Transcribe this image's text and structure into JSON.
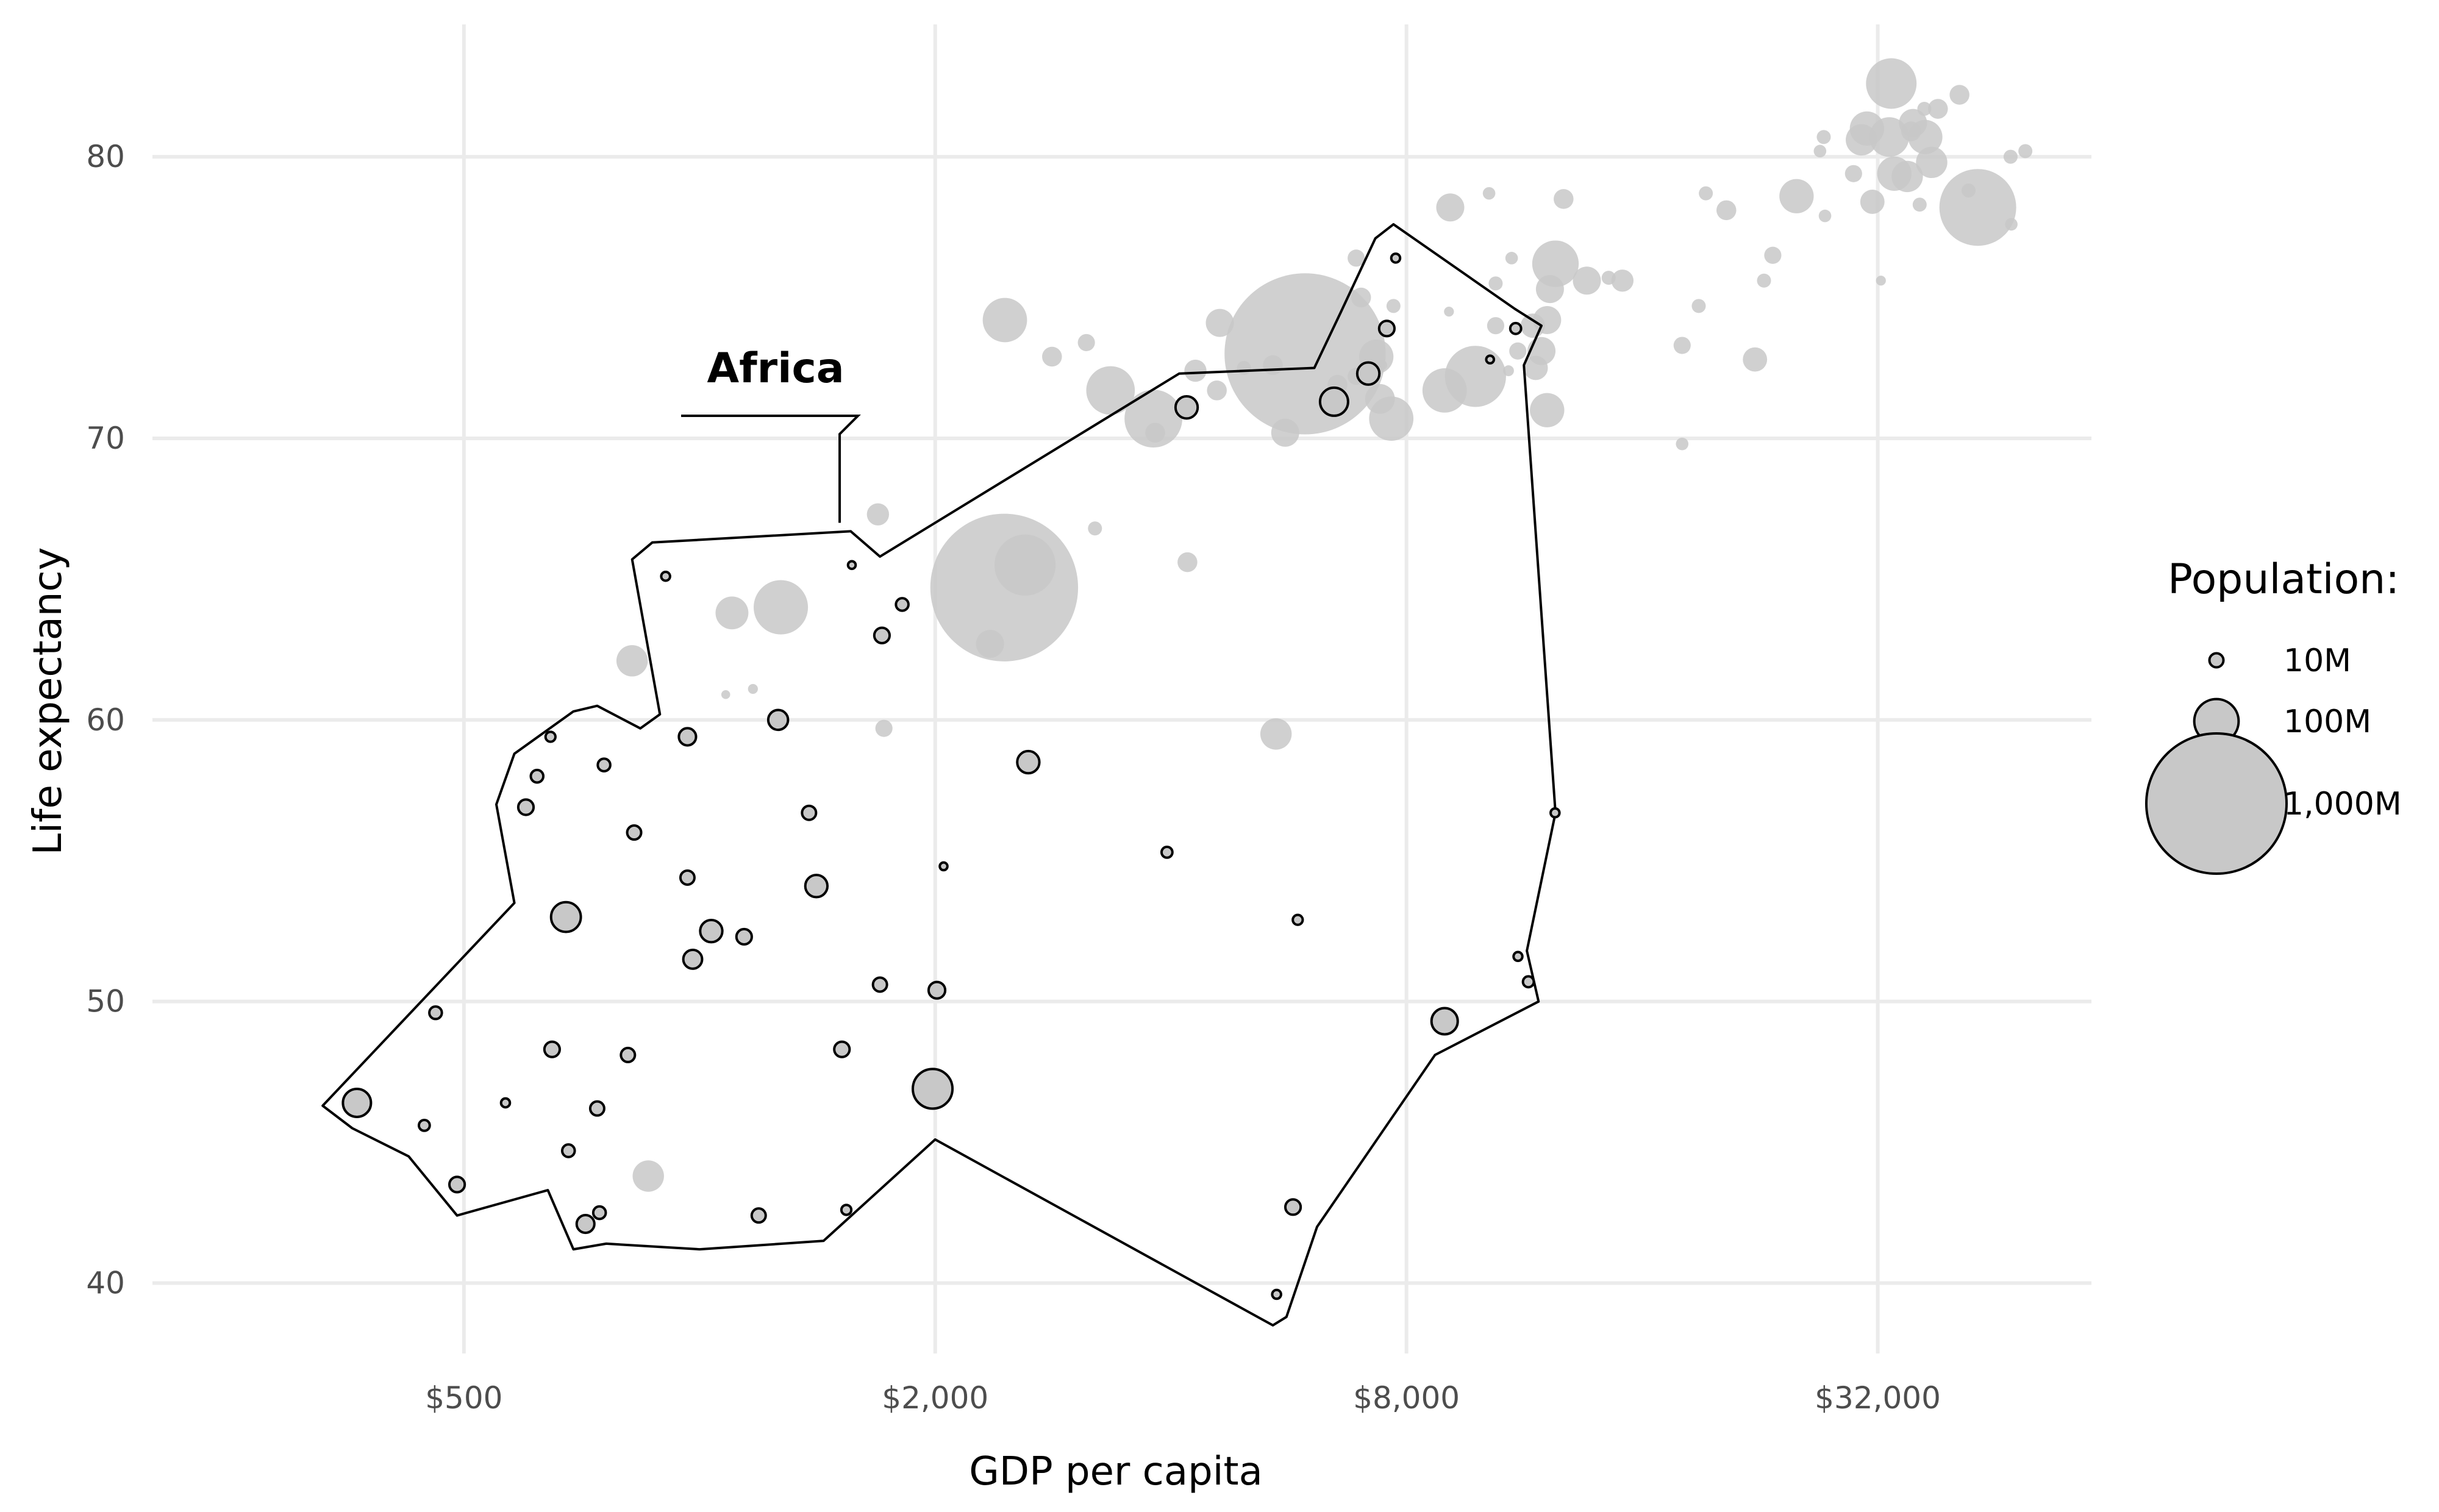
{
  "chart_data": {
    "type": "scatter",
    "title": "",
    "xlabel": "GDP per capita",
    "ylabel": "Life expectancy",
    "x_scale": "log2",
    "xlim": [
      200,
      60000
    ],
    "ylim": [
      37.5,
      84.7
    ],
    "x_ticks": [
      {
        "value": 500,
        "label": "$500"
      },
      {
        "value": 2000,
        "label": "$2,000"
      },
      {
        "value": 8000,
        "label": "$8,000"
      },
      {
        "value": 32000,
        "label": "$32,000"
      }
    ],
    "y_ticks": [
      {
        "value": 40,
        "label": "40"
      },
      {
        "value": 50,
        "label": "50"
      },
      {
        "value": 60,
        "label": "60"
      },
      {
        "value": 70,
        "label": "70"
      },
      {
        "value": 80,
        "label": "80"
      }
    ],
    "grid": true,
    "legend": {
      "title": "Population:",
      "placement": "right",
      "entries": [
        {
          "label": "10M",
          "pop": 10
        },
        {
          "label": "100M",
          "pop": 100
        },
        {
          "label": "1,000M",
          "pop": 1000
        }
      ]
    },
    "annotation": {
      "text": "Africa",
      "target": "Africa hull"
    },
    "colors": {
      "point_fill": "#c8c8c8",
      "point_stroke": "#000000",
      "grid": "#ebebeb",
      "hull": "#000000"
    },
    "hull": [
      [
        330,
        46.3
      ],
      [
        360,
        45.5
      ],
      [
        425,
        44.5
      ],
      [
        490,
        42.4
      ],
      [
        640,
        43.3
      ],
      [
        690,
        41.2
      ],
      [
        760,
        41.4
      ],
      [
        1000,
        41.2
      ],
      [
        1440,
        41.5
      ],
      [
        2000,
        45.1
      ],
      [
        5400,
        38.5
      ],
      [
        5620,
        38.8
      ],
      [
        6150,
        42.0
      ],
      [
        8700,
        48.1
      ],
      [
        11800,
        50.0
      ],
      [
        11400,
        51.8
      ],
      [
        12400,
        56.7
      ],
      [
        11300,
        72.6
      ],
      [
        11900,
        74.0
      ],
      [
        11000,
        74.6
      ],
      [
        7700,
        77.6
      ],
      [
        7300,
        77.1
      ],
      [
        6600,
        74.5
      ],
      [
        6100,
        72.5
      ],
      [
        4100,
        72.3
      ],
      [
        1700,
        65.8
      ],
      [
        1560,
        66.7
      ],
      [
        870,
        66.3
      ],
      [
        820,
        65.7
      ],
      [
        890,
        60.2
      ],
      [
        840,
        59.7
      ],
      [
        740,
        60.5
      ],
      [
        690,
        60.3
      ],
      [
        580,
        58.8
      ],
      [
        550,
        57.0
      ],
      [
        580,
        53.5
      ],
      [
        330,
        46.3
      ]
    ],
    "points_africa": [
      {
        "gdp": 365,
        "le": 46.4,
        "pop": 40
      },
      {
        "gdp": 460,
        "le": 49.6,
        "pop": 8
      },
      {
        "gdp": 445,
        "le": 45.6,
        "pop": 6
      },
      {
        "gdp": 490,
        "le": 43.5,
        "pop": 12
      },
      {
        "gdp": 565,
        "le": 46.4,
        "pop": 4
      },
      {
        "gdp": 600,
        "le": 56.9,
        "pop": 12
      },
      {
        "gdp": 620,
        "le": 58.0,
        "pop": 8
      },
      {
        "gdp": 645,
        "le": 59.4,
        "pop": 5
      },
      {
        "gdp": 648,
        "le": 48.3,
        "pop": 12
      },
      {
        "gdp": 675,
        "le": 53.0,
        "pop": 45
      },
      {
        "gdp": 680,
        "le": 44.7,
        "pop": 8
      },
      {
        "gdp": 715,
        "le": 42.1,
        "pop": 16
      },
      {
        "gdp": 745,
        "le": 42.5,
        "pop": 8
      },
      {
        "gdp": 740,
        "le": 46.2,
        "pop": 10
      },
      {
        "gdp": 755,
        "le": 58.4,
        "pop": 8
      },
      {
        "gdp": 810,
        "le": 48.1,
        "pop": 10
      },
      {
        "gdp": 825,
        "le": 56.0,
        "pop": 10
      },
      {
        "gdp": 905,
        "le": 65.1,
        "pop": 4
      },
      {
        "gdp": 965,
        "le": 59.4,
        "pop": 15
      },
      {
        "gdp": 965,
        "le": 54.4,
        "pop": 10
      },
      {
        "gdp": 980,
        "le": 51.5,
        "pop": 18
      },
      {
        "gdp": 1035,
        "le": 52.5,
        "pop": 25
      },
      {
        "gdp": 1140,
        "le": 52.3,
        "pop": 12
      },
      {
        "gdp": 1190,
        "le": 42.4,
        "pop": 10
      },
      {
        "gdp": 1260,
        "le": 60.0,
        "pop": 20
      },
      {
        "gdp": 1380,
        "le": 56.7,
        "pop": 10
      },
      {
        "gdp": 1410,
        "le": 54.1,
        "pop": 25
      },
      {
        "gdp": 1520,
        "le": 48.3,
        "pop": 12
      },
      {
        "gdp": 1540,
        "le": 42.6,
        "pop": 5
      },
      {
        "gdp": 1565,
        "le": 65.5,
        "pop": 3
      },
      {
        "gdp": 1700,
        "le": 50.6,
        "pop": 10
      },
      {
        "gdp": 1710,
        "le": 63.0,
        "pop": 12
      },
      {
        "gdp": 1815,
        "le": 64.1,
        "pop": 8
      },
      {
        "gdp": 1985,
        "le": 46.9,
        "pop": 80
      },
      {
        "gdp": 2010,
        "le": 50.4,
        "pop": 14
      },
      {
        "gdp": 2050,
        "le": 54.8,
        "pop": 3
      },
      {
        "gdp": 2630,
        "le": 58.5,
        "pop": 25
      },
      {
        "gdp": 3955,
        "le": 55.3,
        "pop": 6
      },
      {
        "gdp": 4190,
        "le": 71.1,
        "pop": 25
      },
      {
        "gdp": 5460,
        "le": 39.6,
        "pop": 4
      },
      {
        "gdp": 5730,
        "le": 42.7,
        "pop": 12
      },
      {
        "gdp": 5810,
        "le": 52.9,
        "pop": 5
      },
      {
        "gdp": 6465,
        "le": 71.3,
        "pop": 40
      },
      {
        "gdp": 7150,
        "le": 72.3,
        "pop": 25
      },
      {
        "gdp": 7550,
        "le": 73.9,
        "pop": 12
      },
      {
        "gdp": 7750,
        "le": 76.4,
        "pop": 4
      },
      {
        "gdp": 8950,
        "le": 49.3,
        "pop": 35
      },
      {
        "gdp": 10230,
        "le": 72.8,
        "pop": 3
      },
      {
        "gdp": 11030,
        "le": 73.9,
        "pop": 6
      },
      {
        "gdp": 11105,
        "le": 51.6,
        "pop": 4
      },
      {
        "gdp": 11450,
        "le": 50.7,
        "pop": 6
      },
      {
        "gdp": 12385,
        "le": 56.7,
        "pop": 4
      }
    ],
    "points_other": [
      {
        "gdp": 1100,
        "le": 63.8,
        "pop": 55
      },
      {
        "gdp": 1270,
        "le": 64.0,
        "pop": 150
      },
      {
        "gdp": 1170,
        "le": 61.1,
        "pop": 5
      },
      {
        "gdp": 1080,
        "le": 60.9,
        "pop": 4
      },
      {
        "gdp": 1690,
        "le": 67.3,
        "pop": 25
      },
      {
        "gdp": 1720,
        "le": 59.7,
        "pop": 15
      },
      {
        "gdp": 820,
        "le": 62.1,
        "pop": 50
      },
      {
        "gdp": 860,
        "le": 43.8,
        "pop": 50
      },
      {
        "gdp": 2450,
        "le": 64.7,
        "pop": 1110
      },
      {
        "gdp": 2455,
        "le": 74.2,
        "pop": 100
      },
      {
        "gdp": 2605,
        "le": 65.5,
        "pop": 190
      },
      {
        "gdp": 2350,
        "le": 62.7,
        "pop": 40
      },
      {
        "gdp": 2820,
        "le": 72.9,
        "pop": 20
      },
      {
        "gdp": 3120,
        "le": 73.4,
        "pop": 15
      },
      {
        "gdp": 3200,
        "le": 66.8,
        "pop": 10
      },
      {
        "gdp": 3350,
        "le": 71.7,
        "pop": 120
      },
      {
        "gdp": 3800,
        "le": 70.7,
        "pop": 170
      },
      {
        "gdp": 3820,
        "le": 70.2,
        "pop": 20
      },
      {
        "gdp": 4200,
        "le": 65.6,
        "pop": 20
      },
      {
        "gdp": 4300,
        "le": 72.4,
        "pop": 25
      },
      {
        "gdp": 4580,
        "le": 71.7,
        "pop": 20
      },
      {
        "gdp": 4960,
        "le": 72.5,
        "pop": 10
      },
      {
        "gdp": 4620,
        "le": 74.1,
        "pop": 40
      },
      {
        "gdp": 5400,
        "le": 72.6,
        "pop": 20
      },
      {
        "gdp": 5450,
        "le": 59.5,
        "pop": 50
      },
      {
        "gdp": 5600,
        "le": 70.2,
        "pop": 40
      },
      {
        "gdp": 5937,
        "le": 73.0,
        "pop": 1320
      },
      {
        "gdp": 6530,
        "le": 71.9,
        "pop": 20
      },
      {
        "gdp": 6900,
        "le": 72.2,
        "pop": 15
      },
      {
        "gdp": 6900,
        "le": 76.4,
        "pop": 15
      },
      {
        "gdp": 7000,
        "le": 75.0,
        "pop": 20
      },
      {
        "gdp": 7320,
        "le": 72.9,
        "pop": 60
      },
      {
        "gdp": 7400,
        "le": 71.4,
        "pop": 45
      },
      {
        "gdp": 7650,
        "le": 70.7,
        "pop": 100
      },
      {
        "gdp": 7450,
        "le": 72.6,
        "pop": 5
      },
      {
        "gdp": 7700,
        "le": 74.7,
        "pop": 10
      },
      {
        "gdp": 8950,
        "le": 71.7,
        "pop": 100
      },
      {
        "gdp": 9100,
        "le": 78.2,
        "pop": 40
      },
      {
        "gdp": 9065,
        "le": 74.5,
        "pop": 5
      },
      {
        "gdp": 9800,
        "le": 72.2,
        "pop": 190
      },
      {
        "gdp": 10200,
        "le": 78.7,
        "pop": 8
      },
      {
        "gdp": 10400,
        "le": 74.0,
        "pop": 15
      },
      {
        "gdp": 10400,
        "le": 75.5,
        "pop": 10
      },
      {
        "gdp": 10800,
        "le": 72.4,
        "pop": 6
      },
      {
        "gdp": 10900,
        "le": 76.4,
        "pop": 8
      },
      {
        "gdp": 11100,
        "le": 73.1,
        "pop": 15
      },
      {
        "gdp": 11700,
        "le": 72.5,
        "pop": 30
      },
      {
        "gdp": 11600,
        "le": 74.0,
        "pop": 30
      },
      {
        "gdp": 12200,
        "le": 75.3,
        "pop": 40
      },
      {
        "gdp": 12400,
        "le": 76.2,
        "pop": 110
      },
      {
        "gdp": 11900,
        "le": 73.1,
        "pop": 40
      },
      {
        "gdp": 12100,
        "le": 74.2,
        "pop": 40
      },
      {
        "gdp": 12100,
        "le": 71.0,
        "pop": 60
      },
      {
        "gdp": 12700,
        "le": 78.5,
        "pop": 20
      },
      {
        "gdp": 13600,
        "le": 75.6,
        "pop": 40
      },
      {
        "gdp": 15100,
        "le": 75.6,
        "pop": 25
      },
      {
        "gdp": 14500,
        "le": 75.7,
        "pop": 10
      },
      {
        "gdp": 18000,
        "le": 73.3,
        "pop": 15
      },
      {
        "gdp": 18000,
        "le": 69.8,
        "pop": 8
      },
      {
        "gdp": 18900,
        "le": 74.7,
        "pop": 10
      },
      {
        "gdp": 19300,
        "le": 78.7,
        "pop": 10
      },
      {
        "gdp": 20500,
        "le": 78.1,
        "pop": 20
      },
      {
        "gdp": 22300,
        "le": 72.8,
        "pop": 30
      },
      {
        "gdp": 22900,
        "le": 75.6,
        "pop": 10
      },
      {
        "gdp": 23500,
        "le": 76.5,
        "pop": 15
      },
      {
        "gdp": 25200,
        "le": 78.6,
        "pop": 60
      },
      {
        "gdp": 27400,
        "le": 77.9,
        "pop": 8
      },
      {
        "gdp": 27000,
        "le": 80.2,
        "pop": 8
      },
      {
        "gdp": 27300,
        "le": 80.7,
        "pop": 10
      },
      {
        "gdp": 29800,
        "le": 79.4,
        "pop": 15
      },
      {
        "gdp": 30500,
        "le": 80.6,
        "pop": 50
      },
      {
        "gdp": 31000,
        "le": 81.0,
        "pop": 60
      },
      {
        "gdp": 31500,
        "le": 78.4,
        "pop": 30
      },
      {
        "gdp": 32300,
        "le": 75.6,
        "pop": 5
      },
      {
        "gdp": 33100,
        "le": 80.7,
        "pop": 80
      },
      {
        "gdp": 33300,
        "le": 82.6,
        "pop": 130
      },
      {
        "gdp": 33600,
        "le": 79.4,
        "pop": 60
      },
      {
        "gdp": 34900,
        "le": 79.3,
        "pop": 50
      },
      {
        "gdp": 35300,
        "le": 80.9,
        "pop": 20
      },
      {
        "gdp": 35500,
        "le": 81.2,
        "pop": 40
      },
      {
        "gdp": 36200,
        "le": 78.3,
        "pop": 10
      },
      {
        "gdp": 36800,
        "le": 80.7,
        "pop": 60
      },
      {
        "gdp": 36700,
        "le": 81.7,
        "pop": 10
      },
      {
        "gdp": 37500,
        "le": 79.8,
        "pop": 50
      },
      {
        "gdp": 38200,
        "le": 81.7,
        "pop": 20
      },
      {
        "gdp": 40700,
        "le": 82.2,
        "pop": 20
      },
      {
        "gdp": 41800,
        "le": 78.8,
        "pop": 10
      },
      {
        "gdp": 42950,
        "le": 78.2,
        "pop": 300
      },
      {
        "gdp": 47300,
        "le": 80.0,
        "pop": 10
      },
      {
        "gdp": 47400,
        "le": 77.6,
        "pop": 8
      },
      {
        "gdp": 49400,
        "le": 80.2,
        "pop": 10
      }
    ]
  }
}
